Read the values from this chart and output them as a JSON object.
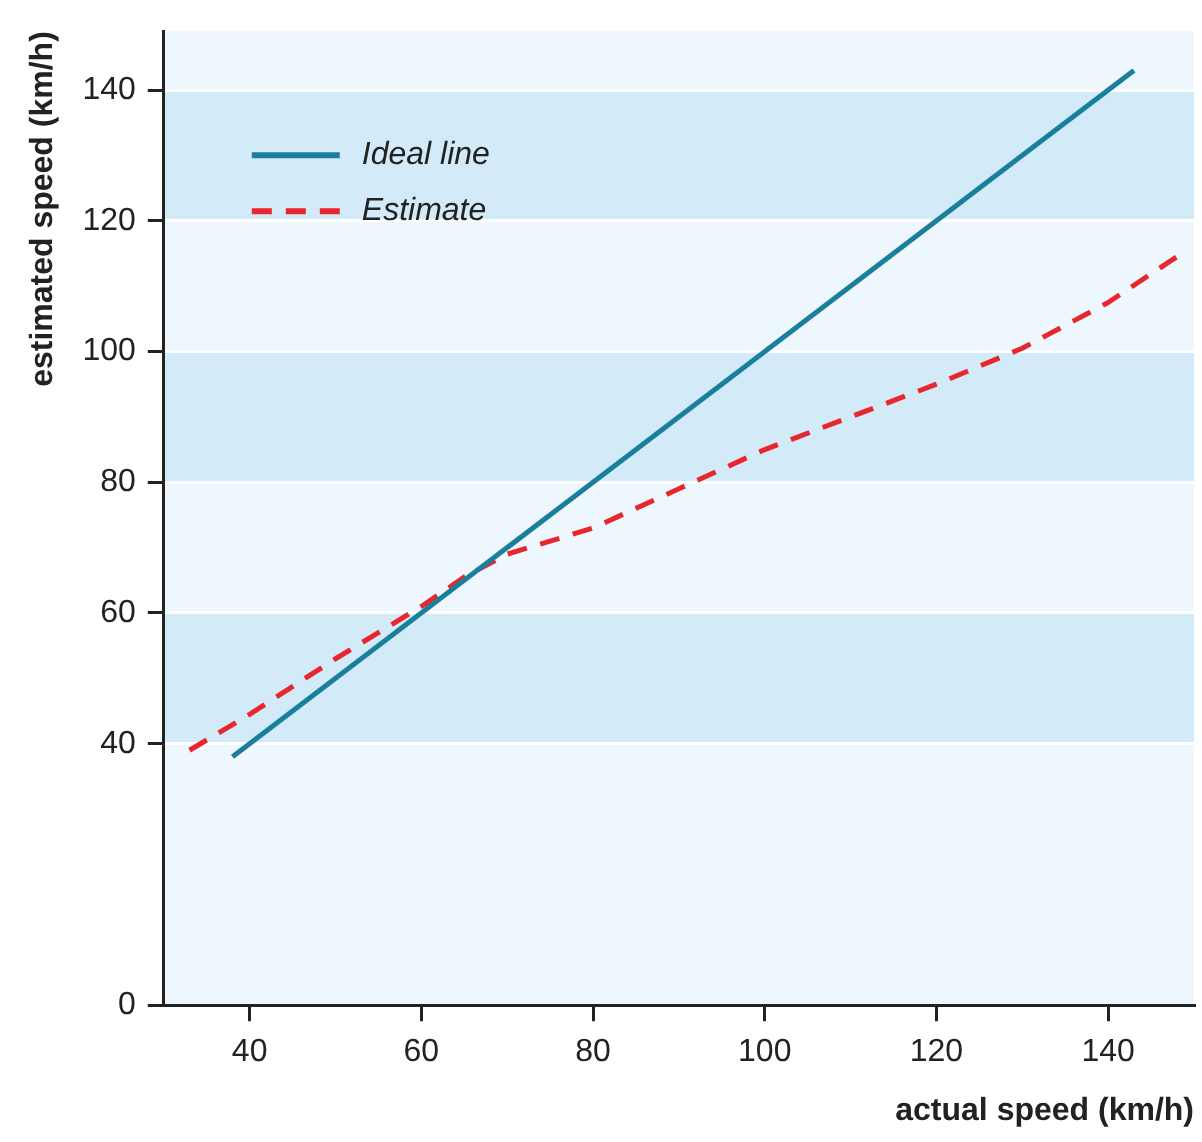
{
  "chart_data": {
    "type": "line",
    "xlabel": "actual speed (km/h)",
    "ylabel": "estimated speed (km/h)",
    "series": [
      {
        "name": "Ideal line",
        "color": "#1a7f9c",
        "line_style": "solid",
        "x": [
          38,
          143
        ],
        "values": [
          38,
          143
        ]
      },
      {
        "name": "Estimate",
        "color": "#e8262d",
        "line_style": "dashed",
        "x": [
          33,
          40,
          50,
          60,
          65,
          70,
          80,
          90,
          100,
          110,
          120,
          130,
          140,
          148
        ],
        "values": [
          39,
          44.5,
          53,
          61,
          65.5,
          69,
          73,
          79,
          85,
          90,
          95,
          100.5,
          107.5,
          114.5
        ]
      }
    ],
    "xlim": [
      30,
      150
    ],
    "xticks": [
      40,
      60,
      80,
      100,
      120,
      140
    ],
    "ylim": [
      0,
      149
    ],
    "yticks": [
      0,
      40,
      60,
      80,
      100,
      120,
      140
    ],
    "bands": [
      {
        "axis": "y",
        "from": 0,
        "to": 40,
        "color": "#eef7fd"
      },
      {
        "axis": "y",
        "from": 40,
        "to": 60,
        "color": "#d3ebf8"
      },
      {
        "axis": "y",
        "from": 60,
        "to": 80,
        "color": "#eef7fd"
      },
      {
        "axis": "y",
        "from": 80,
        "to": 100,
        "color": "#d3ebf8"
      },
      {
        "axis": "y",
        "from": 100,
        "to": 120,
        "color": "#eef7fd"
      },
      {
        "axis": "y",
        "from": 120,
        "to": 140,
        "color": "#d3ebf8"
      },
      {
        "axis": "y",
        "from": 140,
        "to": 149,
        "color": "#eef7fd"
      }
    ],
    "grid": "y",
    "legend": "top left",
    "marker": "none"
  }
}
